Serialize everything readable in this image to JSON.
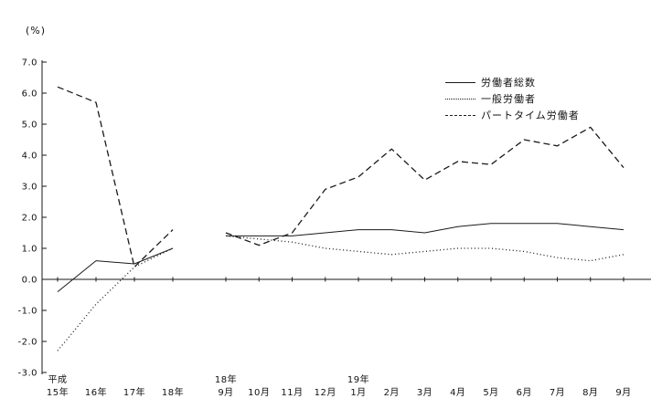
{
  "chart_data": {
    "type": "line",
    "title": "",
    "ylabel": "(%)",
    "ylim": [
      -3.0,
      7.0
    ],
    "ytick_step": 1.0,
    "ytick_labels": [
      "7.0",
      "6.0",
      "5.0",
      "4.0",
      "3.0",
      "2.0",
      "1.0",
      "0.0",
      "-1.0",
      "-2.0",
      "-3.0"
    ],
    "grid": false,
    "legend_position": "upper-right-inside",
    "x_axis": {
      "annual_categories": [
        "15年",
        "16年",
        "17年",
        "18年"
      ],
      "monthly_categories": [
        "9月",
        "10月",
        "11月",
        "12月",
        "1月",
        "2月",
        "3月",
        "4月",
        "5月",
        "6月",
        "7月",
        "8月",
        "9月"
      ],
      "top_labels": [
        {
          "text": "平成",
          "pos": "annual:0"
        },
        {
          "text": "18年",
          "pos": "monthly:0"
        },
        {
          "text": "19年",
          "pos": "monthly:4"
        }
      ]
    },
    "series": [
      {
        "name": "労働者総数",
        "line_style": "solid",
        "color": "#1a1a1a",
        "annual": [
          -0.4,
          0.6,
          0.5,
          1.0
        ],
        "monthly": [
          1.4,
          1.4,
          1.4,
          1.5,
          1.6,
          1.6,
          1.5,
          1.7,
          1.8,
          1.8,
          1.8,
          1.7,
          1.6
        ]
      },
      {
        "name": "一般労働者",
        "line_style": "dotted",
        "color": "#1a1a1a",
        "annual": [
          -2.3,
          -0.8,
          0.4,
          1.0
        ],
        "monthly": [
          1.4,
          1.3,
          1.2,
          1.0,
          0.9,
          0.8,
          0.9,
          1.0,
          1.0,
          0.9,
          0.7,
          0.6,
          0.8
        ]
      },
      {
        "name": "パートタイム労働者",
        "line_style": "dashed",
        "color": "#1a1a1a",
        "annual": [
          6.2,
          5.7,
          0.4,
          1.6
        ],
        "monthly": [
          1.5,
          1.1,
          1.5,
          2.9,
          3.3,
          4.2,
          3.2,
          3.8,
          3.7,
          4.5,
          4.3,
          4.9,
          3.6
        ]
      }
    ]
  }
}
